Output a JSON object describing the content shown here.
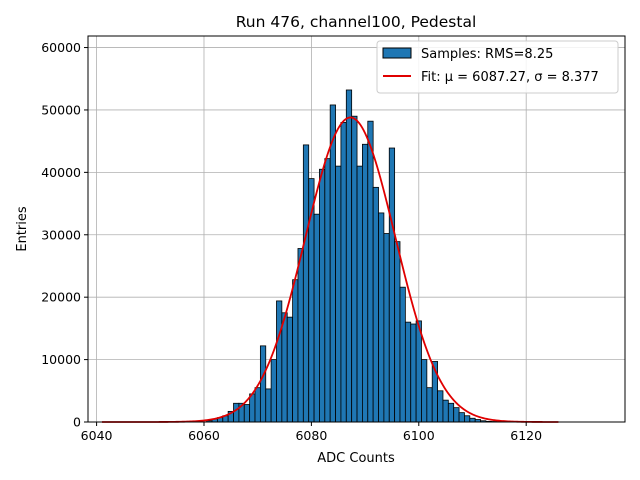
{
  "chart_data": {
    "type": "bar",
    "title": "Run 476, channel100, Pedestal",
    "xlabel": "ADC Counts",
    "ylabel": "Entries",
    "xlim": [
      6038.4,
      6138.4
    ],
    "ylim": [
      0,
      61850
    ],
    "xticks": [
      6040,
      6060,
      6080,
      6100,
      6120
    ],
    "yticks": [
      0,
      10000,
      20000,
      30000,
      40000,
      50000,
      60000
    ],
    "grid": true,
    "legend_position": "top-right",
    "bar_color": "#1f77b4",
    "bar_edge_color": "#000000",
    "fit_color": "#e00000",
    "bin_width": 1,
    "series": [
      {
        "name": "Samples: RMS=8.25",
        "kind": "histogram",
        "x": [
          6061,
          6062,
          6063,
          6064,
          6065,
          6066,
          6067,
          6068,
          6069,
          6070,
          6071,
          6072,
          6073,
          6074,
          6075,
          6076,
          6077,
          6078,
          6079,
          6080,
          6081,
          6082,
          6083,
          6084,
          6085,
          6086,
          6087,
          6088,
          6089,
          6090,
          6091,
          6092,
          6093,
          6094,
          6095,
          6096,
          6097,
          6098,
          6099,
          6100,
          6101,
          6102,
          6103,
          6104,
          6105,
          6106,
          6107,
          6108,
          6109,
          6110,
          6111,
          6112,
          6113,
          6114,
          6115
        ],
        "values": [
          200,
          500,
          700,
          1000,
          1700,
          3000,
          3000,
          2800,
          4500,
          5500,
          12200,
          5300,
          10000,
          19400,
          17500,
          16800,
          22800,
          27800,
          44400,
          39000,
          33300,
          40500,
          42200,
          50800,
          41000,
          48000,
          53200,
          49000,
          41000,
          44500,
          48200,
          37600,
          33500,
          30200,
          43900,
          28900,
          21600,
          16000,
          15700,
          16200,
          10000,
          5500,
          9700,
          5000,
          3500,
          3000,
          2300,
          1500,
          1000,
          600,
          400,
          200,
          100,
          80,
          50
        ]
      },
      {
        "name": "Fit: μ = 6087.27, σ = 8.377",
        "kind": "gaussian",
        "mu": 6087.27,
        "sigma": 8.377,
        "amplitude": 48800,
        "x_range": [
          6041,
          6126
        ]
      }
    ]
  }
}
